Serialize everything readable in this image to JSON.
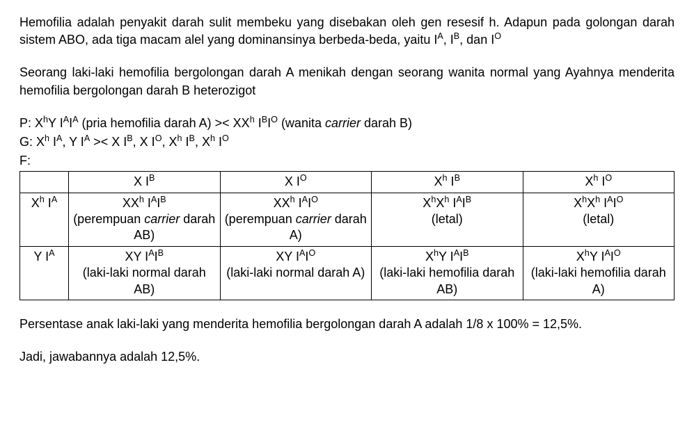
{
  "paragraphs": {
    "p1": "Hemofilia adalah penyakit darah sulit membeku yang disebakan oleh gen resesif h. Adapun pada golongan darah sistem ABO, ada tiga macam alel yang dominansinya berbeda-beda, yaitu I^A, I^B, dan I^O",
    "p2": "Seorang laki-laki hemofilia bergolongan darah A menikah dengan seorang wanita normal yang Ayahnya menderita hemofilia bergolongan darah B heterozigot",
    "p3_P": "P: X^hY I^AI^A (pria hemofilia darah A) >< XX^h I^BI^O (wanita carrier darah B)",
    "p3_G": "G: X^h I^A, Y I^A >< X I^B, X I^O, X^h I^B, X^h I^O",
    "p3_F": "F:",
    "p4": "Persentase anak laki-laki yang menderita hemofilia bergolongan darah A adalah 1/8 x 100% = 12,5%.",
    "p5": "Jadi, jawabannya adalah 12,5%."
  },
  "table": {
    "header": {
      "c0": "",
      "c1": "X I^B",
      "c2": "X I^O",
      "c3": "X^h I^B",
      "c4": "X^h I^O"
    },
    "row1": {
      "head": "X^h I^A",
      "c1_l1": "XX^h I^AI^B",
      "c1_l2": "(perempuan carrier darah AB)",
      "c2_l1": "XX^h I^AI^O",
      "c2_l2": "(perempuan carrier darah A)",
      "c3_l1": "X^hX^h I^AI^B",
      "c3_l2": "(letal)",
      "c4_l1": "X^hX^h I^AI^O",
      "c4_l2": "(letal)"
    },
    "row2": {
      "head": "Y I^A",
      "c1_l1": "XY I^AI^B",
      "c1_l2": "(laki-laki normal darah AB)",
      "c2_l1": "XY I^AI^O",
      "c2_l2": "(laki-laki normal darah A)",
      "c3_l1": "X^hY I^AI^B",
      "c3_l2": "(laki-laki hemofilia darah AB)",
      "c4_l1": "X^hY I^AI^O",
      "c4_l2": "(laki-laki hemofilia darah A)"
    }
  },
  "style": {
    "font_family": "Arial",
    "font_size_pt": 14,
    "text_color": "#000000",
    "background_color": "#ffffff",
    "border_color": "#000000"
  }
}
